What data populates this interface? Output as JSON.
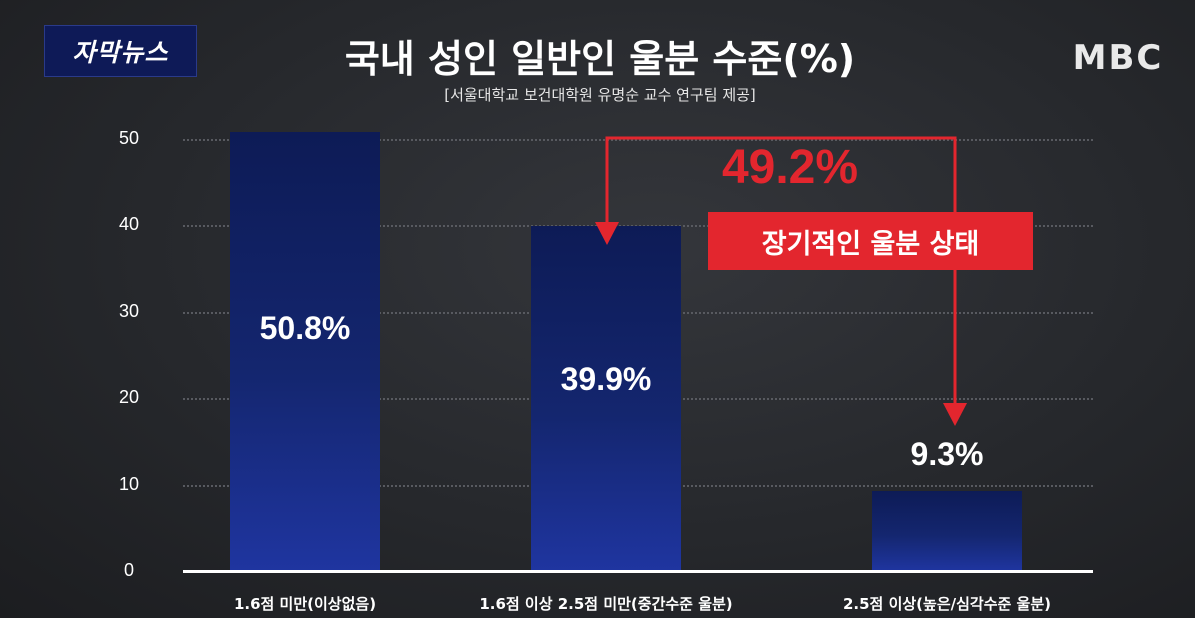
{
  "badge": "자막뉴스",
  "logo": "MBC",
  "colors": {
    "bar": "#14266f",
    "accent": "#e3262e"
  },
  "chart_data": {
    "type": "bar",
    "title": "국내 성인 일반인 울분 수준(%)",
    "subtitle": "[서울대학교 보건대학원 유명순 교수 연구팀 제공]",
    "categories": [
      "1.6점 미만(이상없음)",
      "1.6점 이상 2.5점 미만(중간수준 울분)",
      "2.5점 이상(높은/심각수준 울분)"
    ],
    "values": [
      50.8,
      39.9,
      9.3
    ],
    "value_labels": [
      "50.8%",
      "39.9%",
      "9.3%"
    ],
    "yticks": [
      "0",
      "10",
      "20",
      "30",
      "40",
      "50"
    ],
    "ylim": [
      0,
      50
    ],
    "grid": true,
    "annotation": {
      "percent": "49.2%",
      "label": "장기적인 울분 상태"
    }
  }
}
